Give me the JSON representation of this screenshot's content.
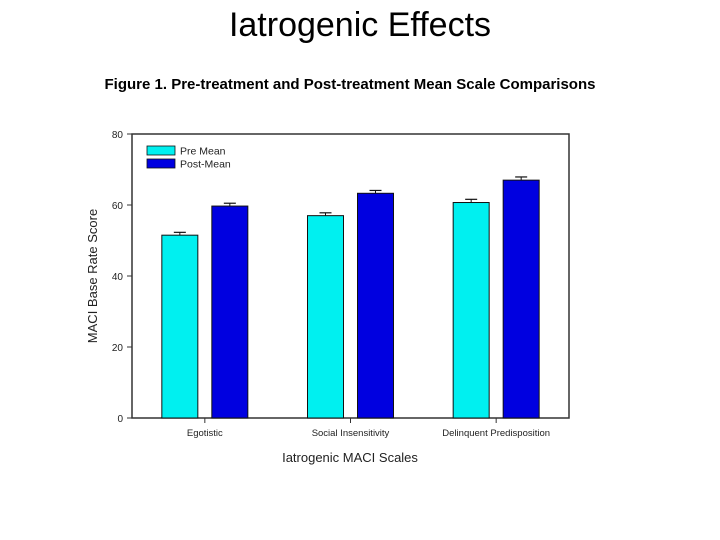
{
  "slide": {
    "title": "Iatrogenic Effects"
  },
  "chart_data": {
    "type": "bar",
    "title": "Figure 1. Pre-treatment and Post-treatment Mean Scale Comparisons",
    "xlabel": "Iatrogenic MACI Scales",
    "ylabel": "MACI Base Rate Score",
    "ylim": [
      0,
      80
    ],
    "yticks": [
      0,
      20,
      40,
      60,
      80
    ],
    "categories": [
      "Egotistic",
      "Social Insensitivity",
      "Delinquent Predisposition"
    ],
    "series": [
      {
        "name": "Pre Mean",
        "color": "#00f0f0",
        "values": [
          51.5,
          57,
          60.7
        ],
        "errors": [
          0.8,
          0.8,
          0.9
        ]
      },
      {
        "name": "Post-Mean",
        "color": "#0000e0",
        "values": [
          59.7,
          63.3,
          67
        ],
        "errors": [
          0.8,
          0.8,
          0.9
        ]
      }
    ],
    "grid": false,
    "legend_position": "top-left"
  }
}
